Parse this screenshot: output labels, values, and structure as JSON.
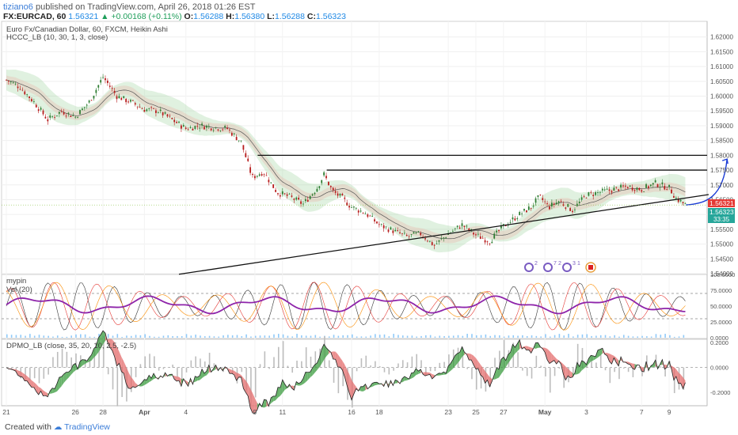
{
  "header": {
    "user": "tiziano6",
    "published_text": "published on TradingView.com, April 26, 2018 01:26 EST",
    "symbol": "FX:EURCAD, 60",
    "last": "1.56321",
    "change": "+0.00168 (+0.11%)",
    "o_label": "O:",
    "o_value": "1.56288",
    "h_label": "H:",
    "h_value": "1.56380",
    "l_label": "L:",
    "l_value": "1.56288",
    "c_label": "C:",
    "c_value": "1.56323"
  },
  "main_pane": {
    "title": "Euro Fx/Canadian Dollar, 60, FXCM, Heikin Ashi",
    "indicator": "HCCC_LB (10, 30, 1, 3, close)",
    "price_labels": {
      "last": "1.56321",
      "close": "1.56323",
      "timer": "33:35"
    },
    "event_badges": [
      "2",
      "7",
      "2",
      "3",
      "1"
    ]
  },
  "mypin_pane": {
    "title": "mypin",
    "volume": "Vol (20)"
  },
  "dpmo_pane": {
    "title": "DPMO_LB (close, 35, 20, 10, 2.5, -2.5)"
  },
  "footer": {
    "created_with": "Created with",
    "brand": "TradingView"
  },
  "chart_data": [
    {
      "type": "candlestick",
      "title": "Euro Fx/Canadian Dollar, 60, FXCM, Heikin Ashi",
      "x_ticks": [
        "21",
        "26",
        "28",
        "Apr",
        "4",
        "9",
        "11",
        "16",
        "18",
        "23",
        "25",
        "27",
        "May",
        "3",
        "7",
        "9"
      ],
      "y_ticks": [
        "1.62000",
        "1.61500",
        "1.61000",
        "1.60500",
        "1.60000",
        "1.59500",
        "1.59000",
        "1.58500",
        "1.58000",
        "1.57500",
        "1.57000",
        "1.56500",
        "1.56000",
        "1.55500",
        "1.55000",
        "1.54500",
        "1.54000"
      ],
      "ylim": [
        1.54,
        1.625
      ],
      "x_range_days": [
        0,
        50
      ],
      "price_path": [
        [
          0,
          1.6055
        ],
        [
          1,
          1.603
        ],
        [
          2,
          1.598
        ],
        [
          3,
          1.592
        ],
        [
          4,
          1.595
        ],
        [
          5,
          1.593
        ],
        [
          6,
          1.598
        ],
        [
          7,
          1.6065
        ],
        [
          8,
          1.6
        ],
        [
          9,
          1.598
        ],
        [
          10,
          1.5955
        ],
        [
          11,
          1.595
        ],
        [
          12,
          1.592
        ],
        [
          13,
          1.589
        ],
        [
          14,
          1.59
        ],
        [
          15,
          1.5895
        ],
        [
          16,
          1.589
        ],
        [
          17,
          1.5845
        ],
        [
          17.8,
          1.5725
        ],
        [
          18.6,
          1.5745
        ],
        [
          19.6,
          1.5675
        ],
        [
          20.5,
          1.566
        ],
        [
          21.5,
          1.5635
        ],
        [
          22.5,
          1.569
        ],
        [
          23,
          1.5735
        ],
        [
          23.6,
          1.568
        ],
        [
          24.3,
          1.5655
        ],
        [
          25,
          1.5625
        ],
        [
          26,
          1.5605
        ],
        [
          27,
          1.5565
        ],
        [
          28,
          1.5545
        ],
        [
          29,
          1.5525
        ],
        [
          30,
          1.5535
        ],
        [
          31,
          1.5495
        ],
        [
          32,
          1.5535
        ],
        [
          33,
          1.5565
        ],
        [
          34,
          1.553
        ],
        [
          35,
          1.551
        ],
        [
          36,
          1.556
        ],
        [
          37,
          1.5595
        ],
        [
          38,
          1.5625
        ],
        [
          38.6,
          1.566
        ],
        [
          39.3,
          1.5625
        ],
        [
          40,
          1.5645
        ],
        [
          41,
          1.5615
        ],
        [
          42,
          1.5665
        ],
        [
          43,
          1.5675
        ],
        [
          44,
          1.5685
        ],
        [
          45,
          1.5695
        ],
        [
          46,
          1.5685
        ],
        [
          47,
          1.5705
        ],
        [
          48,
          1.569
        ],
        [
          48.5,
          1.5655
        ],
        [
          49.2,
          1.5632
        ]
      ],
      "horizontal_lines": [
        1.58,
        1.575
      ],
      "trendline": [
        [
          12.5,
          1.5398
        ],
        [
          50,
          1.5662
        ]
      ],
      "projection_arrow": [
        [
          49.2,
          1.5632
        ],
        [
          51.5,
          1.5675
        ]
      ],
      "last_price": 1.56321
    },
    {
      "type": "line",
      "title": "mypin",
      "subtitle": "Vol (20)",
      "y_ticks": [
        "100.0000",
        "75.0000",
        "50.0000",
        "25.0000",
        "0.0000"
      ],
      "ylim": [
        0,
        100
      ],
      "reference_lines": [
        70,
        30
      ]
    },
    {
      "type": "area",
      "title": "DPMO_LB (close, 35, 20, 10, 2.5, -2.5)",
      "y_ticks": [
        "0.2000",
        "0.0000",
        "-0.2000"
      ],
      "ylim": [
        -0.3,
        0.22
      ]
    }
  ]
}
